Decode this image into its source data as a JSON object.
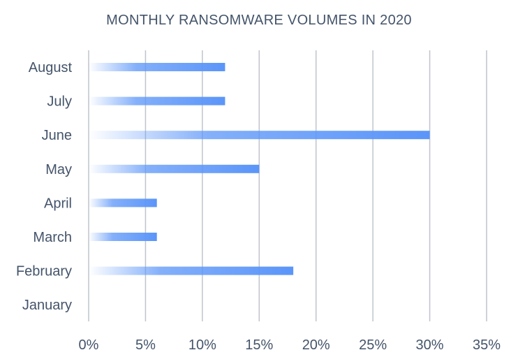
{
  "chart_data": {
    "type": "bar",
    "orientation": "horizontal",
    "title": "MONTHLY RANSOMWARE VOLUMES IN 2020",
    "xlabel": "",
    "ylabel": "",
    "categories": [
      "January",
      "February",
      "March",
      "April",
      "May",
      "June",
      "July",
      "August"
    ],
    "series": [
      {
        "values": [
          0,
          18,
          6,
          6,
          15,
          30,
          12,
          12
        ]
      }
    ],
    "xlim": [
      0,
      35
    ],
    "xticks": [
      "0%",
      "5%",
      "10%",
      "15%",
      "20%",
      "25%",
      "30%",
      "35%"
    ],
    "grid": "vertical",
    "legend": "none",
    "bar_color": "#5b95f9",
    "gridline_color": "#bfc4cc",
    "text_color": "#44546a"
  }
}
